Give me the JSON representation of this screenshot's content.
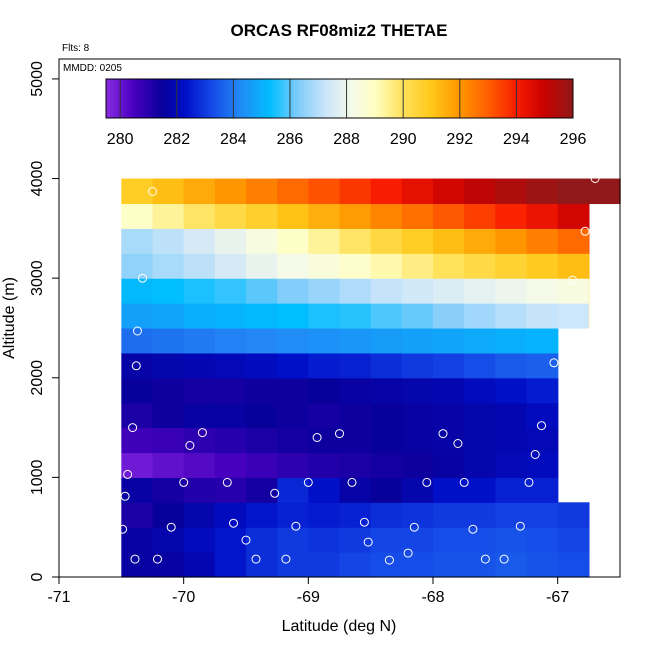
{
  "chart_data": {
    "type": "heatmap",
    "title": "ORCAS RF08miz2 THETAE",
    "xlabel": "Latitude (deg N)",
    "ylabel": "Altitude (m)",
    "annotations": {
      "flts": "Flts: 8",
      "mmdd": "MMDD: 0205"
    },
    "xlim": [
      -71,
      -66.5
    ],
    "ylim": [
      0,
      5200
    ],
    "xticks": [
      -71,
      -70,
      -69,
      -68,
      -67
    ],
    "xtick_labels": [
      "-71",
      "-70",
      "-69",
      "-68",
      "-67"
    ],
    "yticks": [
      0,
      1000,
      2000,
      3000,
      4000,
      5000
    ],
    "ytick_labels": [
      "0",
      "1000",
      "2000",
      "3000",
      "4000",
      "5000"
    ],
    "colorbar": {
      "min": 279.5,
      "max": 296,
      "ticks": [
        280,
        282,
        284,
        286,
        288,
        290,
        292,
        294,
        296
      ],
      "tick_labels": [
        "280",
        "282",
        "284",
        "286",
        "288",
        "290",
        "292",
        "294",
        "296"
      ]
    },
    "grid": {
      "x_start": -70.5,
      "x_step": 0.25,
      "y_step": 250
    },
    "rows": [
      {
        "alt": 0,
        "x_end": -66.75,
        "values": [
          281.6,
          281.6,
          281.9,
          282.4,
          282.8,
          283.0,
          283.0,
          283.2,
          283.3,
          283.3,
          283.4,
          283.4,
          283.5,
          283.4,
          283.3,
          283.2
        ]
      },
      {
        "alt": 250,
        "x_end": -66.75,
        "values": [
          281.6,
          281.8,
          282.1,
          282.4,
          282.8,
          283.0,
          282.9,
          283.0,
          283.2,
          283.2,
          283.3,
          283.3,
          283.4,
          283.3,
          283.2,
          283.1
        ]
      },
      {
        "alt": 500,
        "x_end": -66.75,
        "values": [
          281.2,
          281.5,
          281.8,
          282.1,
          282.4,
          282.6,
          282.5,
          282.6,
          282.8,
          282.9,
          283.0,
          283.0,
          283.1,
          283.1,
          283.0,
          282.9
        ]
      },
      {
        "alt": 750,
        "x_end": -67.0,
        "values": [
          281.6,
          281.3,
          281.1,
          281.0,
          281.3,
          282.7,
          282.3,
          281.7,
          281.5,
          281.8,
          282.3,
          282.3,
          282.6,
          282.6,
          282.7
        ]
      },
      {
        "alt": 1000,
        "x_end": -67.0,
        "values": [
          279.9,
          280.1,
          280.3,
          280.5,
          280.7,
          280.9,
          281.1,
          281.2,
          281.3,
          281.4,
          281.6,
          281.8,
          282.0,
          282.1,
          282.2
        ]
      },
      {
        "alt": 1250,
        "x_end": -67.0,
        "values": [
          280.6,
          280.7,
          280.9,
          281.0,
          281.2,
          281.3,
          281.4,
          281.4,
          281.5,
          281.6,
          281.7,
          281.8,
          281.9,
          282.0,
          282.0
        ]
      },
      {
        "alt": 1500,
        "x_end": -67.0,
        "values": [
          281.2,
          281.4,
          281.6,
          281.6,
          281.5,
          281.4,
          281.3,
          281.4,
          281.5,
          281.6,
          281.7,
          281.8,
          281.9,
          282.1,
          282.2
        ]
      },
      {
        "alt": 1750,
        "x_end": -67.0,
        "values": [
          281.5,
          281.4,
          281.3,
          281.3,
          281.4,
          281.4,
          281.5,
          281.6,
          281.7,
          281.8,
          281.9,
          282.1,
          282.3,
          282.5,
          282.7
        ]
      },
      {
        "alt": 2000,
        "x_end": -67.0,
        "values": [
          281.7,
          281.8,
          281.9,
          282.0,
          282.1,
          282.3,
          282.5,
          282.6,
          282.8,
          283.0,
          283.1,
          283.3,
          283.5,
          283.6,
          283.8
        ]
      },
      {
        "alt": 2250,
        "x_end": -67.0,
        "values": [
          283.8,
          283.9,
          284.0,
          284.1,
          284.2,
          284.3,
          284.4,
          284.5,
          284.6,
          284.7,
          284.8,
          284.9,
          285.0,
          285.1,
          285.2
        ]
      },
      {
        "alt": 2500,
        "x_end": -66.75,
        "values": [
          284.7,
          284.8,
          285.0,
          285.1,
          285.2,
          285.3,
          285.5,
          285.6,
          285.9,
          286.1,
          286.4,
          286.7,
          287.0,
          287.2,
          287.3,
          289.5
        ]
      },
      {
        "alt": 2750,
        "x_end": -66.75,
        "values": [
          285.2,
          285.3,
          285.5,
          285.7,
          286.0,
          286.3,
          286.6,
          286.9,
          287.2,
          287.4,
          287.6,
          287.8,
          288.0,
          288.2,
          288.4,
          289.6
        ]
      },
      {
        "alt": 3000,
        "x_end": -66.75,
        "values": [
          286.5,
          286.8,
          287.1,
          287.5,
          287.9,
          288.2,
          288.5,
          288.8,
          289.2,
          289.6,
          290.0,
          290.3,
          290.6,
          290.9,
          291.2,
          291.5
        ]
      },
      {
        "alt": 3250,
        "x_end": -66.75,
        "values": [
          286.8,
          287.1,
          287.5,
          287.9,
          288.4,
          288.9,
          289.4,
          289.9,
          290.4,
          290.8,
          291.2,
          291.6,
          292.0,
          292.4,
          292.8,
          293.2
        ]
      },
      {
        "alt": 3500,
        "x_end": -66.75,
        "values": [
          288.9,
          289.4,
          289.9,
          290.3,
          290.7,
          291.1,
          291.5,
          291.9,
          292.3,
          292.7,
          293.1,
          293.5,
          293.9,
          294.3,
          294.8,
          295.2
        ]
      },
      {
        "alt": 3750,
        "x_end": -66.5,
        "values": [
          290.8,
          291.2,
          291.6,
          292.0,
          292.4,
          292.8,
          293.2,
          293.6,
          294.0,
          294.4,
          294.8,
          295.2,
          295.5,
          295.8,
          296.0,
          296.2,
          296.4
        ]
      }
    ],
    "points": [
      {
        "lat": -70.25,
        "alt": 3870
      },
      {
        "lat": -70.33,
        "alt": 3000
      },
      {
        "lat": -70.37,
        "alt": 2470
      },
      {
        "lat": -70.38,
        "alt": 2120
      },
      {
        "lat": -70.41,
        "alt": 1500
      },
      {
        "lat": -70.45,
        "alt": 1030
      },
      {
        "lat": -70.47,
        "alt": 810
      },
      {
        "lat": -70.49,
        "alt": 480
      },
      {
        "lat": -70.39,
        "alt": 180
      },
      {
        "lat": -70.21,
        "alt": 180
      },
      {
        "lat": -70.1,
        "alt": 500
      },
      {
        "lat": -70.0,
        "alt": 950
      },
      {
        "lat": -69.95,
        "alt": 1320
      },
      {
        "lat": -69.85,
        "alt": 1450
      },
      {
        "lat": -69.65,
        "alt": 950
      },
      {
        "lat": -69.6,
        "alt": 540
      },
      {
        "lat": -69.5,
        "alt": 370
      },
      {
        "lat": -69.42,
        "alt": 180
      },
      {
        "lat": -69.27,
        "alt": 840
      },
      {
        "lat": -69.18,
        "alt": 180
      },
      {
        "lat": -69.1,
        "alt": 510
      },
      {
        "lat": -69.0,
        "alt": 950
      },
      {
        "lat": -68.93,
        "alt": 1400
      },
      {
        "lat": -68.75,
        "alt": 1440
      },
      {
        "lat": -68.65,
        "alt": 950
      },
      {
        "lat": -68.55,
        "alt": 550
      },
      {
        "lat": -68.52,
        "alt": 350
      },
      {
        "lat": -68.35,
        "alt": 170
      },
      {
        "lat": -68.2,
        "alt": 240
      },
      {
        "lat": -68.15,
        "alt": 500
      },
      {
        "lat": -68.05,
        "alt": 950
      },
      {
        "lat": -67.92,
        "alt": 1440
      },
      {
        "lat": -67.8,
        "alt": 1340
      },
      {
        "lat": -67.75,
        "alt": 950
      },
      {
        "lat": -67.68,
        "alt": 480
      },
      {
        "lat": -67.58,
        "alt": 180
      },
      {
        "lat": -67.43,
        "alt": 180
      },
      {
        "lat": -67.3,
        "alt": 510
      },
      {
        "lat": -67.23,
        "alt": 950
      },
      {
        "lat": -67.18,
        "alt": 1230
      },
      {
        "lat": -67.13,
        "alt": 1520
      },
      {
        "lat": -67.03,
        "alt": 2150
      },
      {
        "lat": -66.88,
        "alt": 2980
      },
      {
        "lat": -66.78,
        "alt": 3470
      },
      {
        "lat": -66.7,
        "alt": 4000
      }
    ]
  }
}
